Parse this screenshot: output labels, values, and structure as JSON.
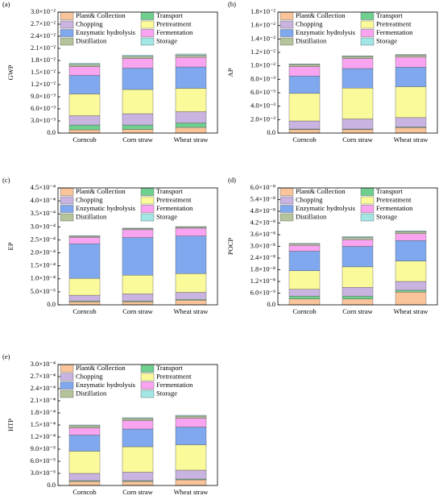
{
  "chart_data": [
    {
      "type": "bar",
      "stacked": true,
      "label": "(a)",
      "y_label": "GWP",
      "categories": [
        "Corncob",
        "Corn straw",
        "Wheat straw"
      ],
      "series": [
        {
          "name": "Plant& Collection",
          "color": "#f9c49a",
          "values": [
            0.0008,
            0.0009,
            0.0014
          ]
        },
        {
          "name": "Transport",
          "color": "#6fcf8f",
          "values": [
            0.0012,
            0.0011,
            0.0011
          ]
        },
        {
          "name": "Chopping",
          "color": "#c9b3e0",
          "values": [
            0.0023,
            0.0028,
            0.0028
          ]
        },
        {
          "name": "Pretreatment",
          "color": "#fbfa9a",
          "values": [
            0.0054,
            0.006,
            0.0058
          ]
        },
        {
          "name": "Enzymatic hydrolysis",
          "color": "#7fa8ef",
          "values": [
            0.0046,
            0.0053,
            0.0053
          ]
        },
        {
          "name": "Fermentation",
          "color": "#f9a4f0",
          "values": [
            0.0022,
            0.0024,
            0.0024
          ]
        },
        {
          "name": "Distillation",
          "color": "#b5c49a",
          "values": [
            0.0005,
            0.0005,
            0.0005
          ]
        },
        {
          "name": "Storage",
          "color": "#a2e6e6",
          "values": [
            0.0003,
            0.0003,
            0.0003
          ]
        }
      ],
      "ylim": [
        0,
        0.03
      ],
      "yticks": [
        {
          "value": 0,
          "label": "0.0"
        },
        {
          "value": 0.003,
          "label": "3.0×10⁻³"
        },
        {
          "value": 0.006,
          "label": "6.0×10⁻³"
        },
        {
          "value": 0.009,
          "label": "9.0×10⁻³"
        },
        {
          "value": 0.012,
          "label": "1.2×10⁻²"
        },
        {
          "value": 0.015,
          "label": "1.5×10⁻²"
        },
        {
          "value": 0.018,
          "label": "1.8×10⁻²"
        },
        {
          "value": 0.021,
          "label": "2.1×10⁻²"
        },
        {
          "value": 0.024,
          "label": "2.4×10⁻²"
        },
        {
          "value": 0.027,
          "label": "2.7×10⁻²"
        },
        {
          "value": 0.03,
          "label": "3.0×10⁻²"
        }
      ]
    },
    {
      "type": "bar",
      "stacked": true,
      "label": "(b)",
      "y_label": "AP",
      "categories": [
        "Corncob",
        "Corn straw",
        "Wheat straw"
      ],
      "series": [
        {
          "name": "Plant& Collection",
          "color": "#f9c49a",
          "values": [
            0.0005,
            0.0005,
            0.0008
          ]
        },
        {
          "name": "Transport",
          "color": "#6fcf8f",
          "values": [
            0.0001,
            0.0001,
            0.0001
          ]
        },
        {
          "name": "Chopping",
          "color": "#c9b3e0",
          "values": [
            0.0012,
            0.0015,
            0.0014
          ]
        },
        {
          "name": "Pretreatment",
          "color": "#fbfa9a",
          "values": [
            0.0041,
            0.0046,
            0.0046
          ]
        },
        {
          "name": "Enzymatic hydrolysis",
          "color": "#7fa8ef",
          "values": [
            0.0026,
            0.0029,
            0.0029
          ]
        },
        {
          "name": "Fermentation",
          "color": "#f9a4f0",
          "values": [
            0.0014,
            0.0015,
            0.0015
          ]
        },
        {
          "name": "Distillation",
          "color": "#b5c49a",
          "values": [
            0.0003,
            0.0003,
            0.0003
          ]
        },
        {
          "name": "Storage",
          "color": "#a2e6e6",
          "values": [
            0.0001,
            0.0001,
            0.0001
          ]
        }
      ],
      "ylim": [
        0,
        0.018
      ],
      "yticks": [
        {
          "value": 0,
          "label": "0.0"
        },
        {
          "value": 0.002,
          "label": "2.0×10⁻³"
        },
        {
          "value": 0.004,
          "label": "4.0×10⁻³"
        },
        {
          "value": 0.006,
          "label": "6.0×10⁻³"
        },
        {
          "value": 0.008,
          "label": "8.0×10⁻³"
        },
        {
          "value": 0.01,
          "label": "1.0×10⁻²"
        },
        {
          "value": 0.012,
          "label": "1.2×10⁻²"
        },
        {
          "value": 0.014,
          "label": "1.4×10⁻²"
        },
        {
          "value": 0.016,
          "label": "1.6×10⁻²"
        },
        {
          "value": 0.018,
          "label": "1.8×10⁻²"
        }
      ]
    },
    {
      "type": "bar",
      "stacked": true,
      "label": "(c)",
      "y_label": "EP",
      "categories": [
        "Corncob",
        "Corn straw",
        "Wheat straw"
      ],
      "series": [
        {
          "name": "Plant& Collection",
          "color": "#f9c49a",
          "values": [
            1.2e-05,
            1.2e-05,
            1.8e-05
          ]
        },
        {
          "name": "Transport",
          "color": "#6fcf8f",
          "values": [
            3e-06,
            3e-06,
            3e-06
          ]
        },
        {
          "name": "Chopping",
          "color": "#c9b3e0",
          "values": [
            2.2e-05,
            2.7e-05,
            2.7e-05
          ]
        },
        {
          "name": "Pretreatment",
          "color": "#fbfa9a",
          "values": [
            6.5e-05,
            7.2e-05,
            7.2e-05
          ]
        },
        {
          "name": "Enzymatic hydrolysis",
          "color": "#7fa8ef",
          "values": [
            0.000133,
            0.000145,
            0.000145
          ]
        },
        {
          "name": "Fermentation",
          "color": "#f9a4f0",
          "values": [
            2.5e-05,
            3e-05,
            3e-05
          ]
        },
        {
          "name": "Distillation",
          "color": "#b5c49a",
          "values": [
            4e-06,
            4e-06,
            4e-06
          ]
        },
        {
          "name": "Storage",
          "color": "#a2e6e6",
          "values": [
            2e-06,
            2e-06,
            2e-06
          ]
        }
      ],
      "ylim": [
        0,
        0.00045
      ],
      "yticks": [
        {
          "value": 0,
          "label": "0.0"
        },
        {
          "value": 5e-05,
          "label": "5.0×10⁻⁵"
        },
        {
          "value": 0.0001,
          "label": "1.0×10⁻⁴"
        },
        {
          "value": 0.00015,
          "label": "1.5×10⁻⁴"
        },
        {
          "value": 0.0002,
          "label": "2.0×10⁻⁴"
        },
        {
          "value": 0.00025,
          "label": "2.5×10⁻⁴"
        },
        {
          "value": 0.0003,
          "label": "3.0×10⁻⁴"
        },
        {
          "value": 0.00035,
          "label": "3.5×10⁻⁴"
        },
        {
          "value": 0.0004,
          "label": "4.0×10⁻⁴"
        },
        {
          "value": 0.00045,
          "label": "4.5×10⁻⁴"
        }
      ]
    },
    {
      "type": "bar",
      "stacked": true,
      "label": "(d)",
      "y_label": "POCP",
      "categories": [
        "Corncob",
        "Corn straw",
        "Wheat straw"
      ],
      "series": [
        {
          "name": "Plant& Collection",
          "color": "#f9c49a",
          "values": [
            3e-09,
            3e-09,
            6.5e-09
          ]
        },
        {
          "name": "Transport",
          "color": "#6fcf8f",
          "values": [
            1.5e-09,
            1.5e-09,
            1e-09
          ]
        },
        {
          "name": "Chopping",
          "color": "#c9b3e0",
          "values": [
            3.5e-09,
            4.5e-09,
            4.5e-09
          ]
        },
        {
          "name": "Pretreatment",
          "color": "#fbfa9a",
          "values": [
            9.5e-09,
            1.05e-08,
            1.05e-08
          ]
        },
        {
          "name": "Enzymatic hydrolysis",
          "color": "#7fa8ef",
          "values": [
            1e-08,
            1.05e-08,
            1.05e-08
          ]
        },
        {
          "name": "Fermentation",
          "color": "#f9a4f0",
          "values": [
            3e-09,
            3.5e-09,
            3.5e-09
          ]
        },
        {
          "name": "Distillation",
          "color": "#b5c49a",
          "values": [
            7e-10,
            1e-09,
            1e-09
          ]
        },
        {
          "name": "Storage",
          "color": "#a2e6e6",
          "values": [
            3e-10,
            5e-10,
            5e-10
          ]
        }
      ],
      "ylim": [
        0,
        6e-08
      ],
      "yticks": [
        {
          "value": 0,
          "label": "0.0"
        },
        {
          "value": 6e-09,
          "label": "6.0×10⁻⁹"
        },
        {
          "value": 1.2e-08,
          "label": "1.2×10⁻⁸"
        },
        {
          "value": 1.8e-08,
          "label": "1.8×10⁻⁸"
        },
        {
          "value": 2.4e-08,
          "label": "2.4×10⁻⁸"
        },
        {
          "value": 3e-08,
          "label": "3.0×10⁻⁸"
        },
        {
          "value": 3.6e-08,
          "label": "3.6×10⁻⁸"
        },
        {
          "value": 4.2e-08,
          "label": "4.2×10⁻⁸"
        },
        {
          "value": 4.8e-08,
          "label": "4.8×10⁻⁸"
        },
        {
          "value": 5.4e-08,
          "label": "5.4×10⁻⁸"
        },
        {
          "value": 6e-08,
          "label": "6.0×10⁻⁸"
        }
      ]
    },
    {
      "type": "bar",
      "stacked": true,
      "label": "(e)",
      "y_label": "HTP",
      "categories": [
        "Corncob",
        "Corn straw",
        "Wheat straw"
      ],
      "series": [
        {
          "name": "Plant& Collection",
          "color": "#f9c49a",
          "values": [
            1e-05,
            1e-05,
            1.4e-05
          ]
        },
        {
          "name": "Transport",
          "color": "#6fcf8f",
          "values": [
            2e-06,
            2e-06,
            2e-06
          ]
        },
        {
          "name": "Chopping",
          "color": "#c9b3e0",
          "values": [
            1.8e-05,
            2.1e-05,
            2.2e-05
          ]
        },
        {
          "name": "Pretreatment",
          "color": "#fbfa9a",
          "values": [
            5.5e-05,
            6.3e-05,
            6.3e-05
          ]
        },
        {
          "name": "Enzymatic hydrolysis",
          "color": "#7fa8ef",
          "values": [
            4e-05,
            4.4e-05,
            4.4e-05
          ]
        },
        {
          "name": "Fermentation",
          "color": "#f9a4f0",
          "values": [
            1.8e-05,
            2.1e-05,
            2.2e-05
          ]
        },
        {
          "name": "Distillation",
          "color": "#b5c49a",
          "values": [
            5e-06,
            5e-06,
            5e-06
          ]
        },
        {
          "name": "Storage",
          "color": "#a2e6e6",
          "values": [
            2e-06,
            2e-06,
            2e-06
          ]
        }
      ],
      "ylim": [
        0,
        0.0003
      ],
      "yticks": [
        {
          "value": 0,
          "label": "0.0"
        },
        {
          "value": 3e-05,
          "label": "3.0×10⁻⁵"
        },
        {
          "value": 6e-05,
          "label": "6.0×10⁻⁵"
        },
        {
          "value": 9e-05,
          "label": "9.0×10⁻⁵"
        },
        {
          "value": 0.00012,
          "label": "1.2×10⁻⁴"
        },
        {
          "value": 0.00015,
          "label": "1.5×10⁻⁴"
        },
        {
          "value": 0.00018,
          "label": "1.8×10⁻⁴"
        },
        {
          "value": 0.00021,
          "label": "2.1×10⁻⁴"
        },
        {
          "value": 0.00024,
          "label": "2.4×10⁻⁴"
        },
        {
          "value": 0.00027,
          "label": "2.7×10⁻⁴"
        },
        {
          "value": 0.0003,
          "label": "3.0×10⁻⁴"
        }
      ]
    }
  ]
}
